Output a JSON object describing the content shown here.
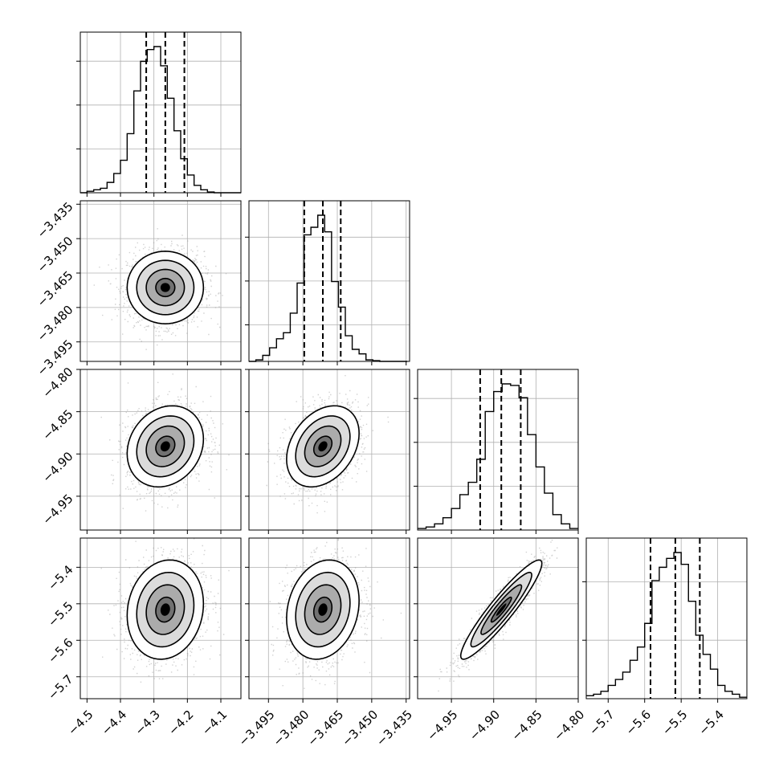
{
  "chart_data": {
    "type": "corner",
    "parameters": [
      {
        "index": 0,
        "range": [
          -4.52,
          -4.04
        ],
        "ticks": [
          -4.5,
          -4.4,
          -4.3,
          -4.2,
          -4.1
        ],
        "tick_labels": [
          "−4.5",
          "−4.4",
          "−4.3",
          "−4.2",
          "−4.1"
        ],
        "quantiles": [
          -4.323,
          -4.266,
          -4.209
        ],
        "hist_bins": [
          -4.52,
          -4.5,
          -4.48,
          -4.46,
          -4.44,
          -4.42,
          -4.4,
          -4.38,
          -4.36,
          -4.34,
          -4.32,
          -4.3,
          -4.28,
          -4.26,
          -4.24,
          -4.22,
          -4.2,
          -4.18,
          -4.16,
          -4.14,
          -4.12,
          -4.1,
          -4.08,
          -4.06,
          -4.04
        ],
        "hist_counts": [
          0.0,
          0.01,
          0.02,
          0.03,
          0.07,
          0.13,
          0.22,
          0.4,
          0.69,
          0.89,
          0.97,
          0.99,
          0.86,
          0.64,
          0.42,
          0.23,
          0.12,
          0.05,
          0.02,
          0.005,
          0.0,
          0.0,
          0.0,
          0.0
        ],
        "hist_yticks": [
          0.3,
          0.6,
          0.9
        ]
      },
      {
        "index": 1,
        "range": [
          -3.5035,
          -3.4335
        ],
        "ticks": [
          -3.495,
          -3.48,
          -3.465,
          -3.45,
          -3.435
        ],
        "tick_labels": [
          "−3.495",
          "−3.480",
          "−3.465",
          "−3.450",
          "−3.435"
        ],
        "quantiles": [
          -3.4794,
          -3.4713,
          -3.4635
        ],
        "hist_bins": [
          -3.5035,
          -3.5005,
          -3.4975,
          -3.4945,
          -3.4915,
          -3.4885,
          -3.4855,
          -3.4825,
          -3.4795,
          -3.4765,
          -3.4735,
          -3.4705,
          -3.4675,
          -3.4645,
          -3.4615,
          -3.4585,
          -3.4555,
          -3.4525,
          -3.4495,
          -3.4465,
          -3.4435,
          -3.4405,
          -3.4375,
          -3.4345
        ],
        "hist_counts": [
          0.0,
          0.01,
          0.04,
          0.09,
          0.15,
          0.19,
          0.32,
          0.52,
          0.84,
          0.89,
          0.97,
          0.86,
          0.53,
          0.36,
          0.17,
          0.08,
          0.05,
          0.01,
          0.005,
          0.0,
          0.0,
          0.0,
          0.0
        ],
        "hist_yticks": [
          0.25,
          0.55,
          0.85
        ]
      },
      {
        "index": 2,
        "range": [
          -4.99,
          -4.8
        ],
        "ticks": [
          -4.95,
          -4.9,
          -4.85,
          -4.8
        ],
        "tick_labels": [
          "−4.95",
          "−4.90",
          "−4.85",
          "−4.80"
        ],
        "left_tick_labels": [
          "−4.80",
          "−4.85",
          "−4.90",
          "−4.95"
        ],
        "quantiles": [
          -4.916,
          -4.891,
          -4.868
        ],
        "hist_bins": [
          -4.99,
          -4.98,
          -4.97,
          -4.96,
          -4.95,
          -4.94,
          -4.93,
          -4.92,
          -4.91,
          -4.9,
          -4.89,
          -4.88,
          -4.87,
          -4.86,
          -4.85,
          -4.84,
          -4.83,
          -4.82,
          -4.81,
          -4.8
        ],
        "hist_counts": [
          0.01,
          0.02,
          0.04,
          0.08,
          0.14,
          0.23,
          0.31,
          0.46,
          0.77,
          0.9,
          0.95,
          0.94,
          0.86,
          0.62,
          0.41,
          0.24,
          0.1,
          0.04,
          0.01
        ],
        "hist_yticks": [
          0.3,
          0.6,
          0.9
        ]
      },
      {
        "index": 3,
        "range": [
          -5.76,
          -5.32
        ],
        "ticks": [
          -5.7,
          -5.6,
          -5.5,
          -5.4
        ],
        "tick_labels": [
          "−5.7",
          "−5.6",
          "−5.5",
          "−5.4"
        ],
        "left_tick_labels": [
          "−5.4",
          "−5.5",
          "−5.6",
          "−5.7"
        ],
        "quantiles": [
          -5.584,
          -5.516,
          -5.449
        ],
        "hist_bins": [
          -5.76,
          -5.74,
          -5.72,
          -5.7,
          -5.68,
          -5.66,
          -5.64,
          -5.62,
          -5.6,
          -5.58,
          -5.56,
          -5.54,
          -5.52,
          -5.5,
          -5.48,
          -5.46,
          -5.44,
          -5.42,
          -5.4,
          -5.38,
          -5.36,
          -5.34,
          -5.32
        ],
        "hist_counts": [
          0.02,
          0.03,
          0.05,
          0.09,
          0.13,
          0.18,
          0.26,
          0.35,
          0.51,
          0.8,
          0.89,
          0.95,
          0.99,
          0.91,
          0.66,
          0.43,
          0.3,
          0.2,
          0.09,
          0.05,
          0.03,
          0.01
        ],
        "hist_yticks": [
          0.4,
          0.8
        ]
      }
    ],
    "pairs": [
      {
        "row": 1,
        "col": 0,
        "center": [
          -4.266,
          -3.4713
        ],
        "sigma": [
          0.057,
          0.0079
        ],
        "rho": 0.0
      },
      {
        "row": 2,
        "col": 0,
        "center": [
          -4.266,
          -4.891
        ],
        "sigma": [
          0.057,
          0.024
        ],
        "rho": 0.18
      },
      {
        "row": 2,
        "col": 1,
        "center": [
          -3.4713,
          -4.891
        ],
        "sigma": [
          0.0079,
          0.024
        ],
        "rho": 0.32
      },
      {
        "row": 3,
        "col": 0,
        "center": [
          -4.266,
          -5.516
        ],
        "sigma": [
          0.057,
          0.068
        ],
        "rho": 0.12
      },
      {
        "row": 3,
        "col": 1,
        "center": [
          -3.4713,
          -5.516
        ],
        "sigma": [
          0.0079,
          0.068
        ],
        "rho": 0.18
      },
      {
        "row": 3,
        "col": 2,
        "center": [
          -4.891,
          -5.516
        ],
        "sigma": [
          0.024,
          0.068
        ],
        "rho": 0.93
      }
    ],
    "contour_levels": [
      0.5,
      1.0,
      1.5,
      2.0
    ],
    "grid": true,
    "colors": {
      "axis": "#000000",
      "grid": "#b0b0b0",
      "scatter": "#9a9a9a",
      "density_dark": "#000000"
    }
  }
}
